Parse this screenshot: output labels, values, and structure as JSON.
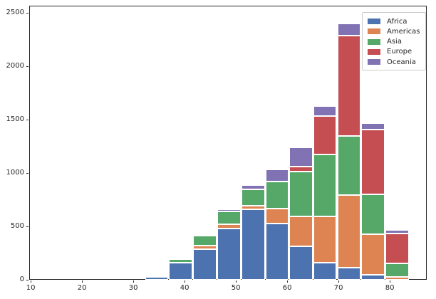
{
  "chart_data": {
    "type": "bar",
    "subtype": "stacked-histogram",
    "title": "",
    "xlabel": "",
    "ylabel": "",
    "x_ticks": [
      10,
      20,
      30,
      40,
      50,
      60,
      70,
      80
    ],
    "y_ticks": [
      0,
      500,
      1000,
      1500,
      2000,
      2500
    ],
    "xlim": [
      9.7,
      87.2
    ],
    "ylim": [
      0,
      2567
    ],
    "grid": false,
    "bin_edges": [
      32.2,
      36.9,
      41.6,
      46.3,
      51.0,
      55.7,
      60.3,
      65.0,
      69.7,
      74.4,
      79.1,
      83.8
    ],
    "series": [
      {
        "name": "Africa",
        "color": "#4C72B0",
        "values": [
          25,
          158,
          289,
          482,
          657,
          529,
          315,
          160,
          113,
          45,
          0
        ]
      },
      {
        "name": "Americas",
        "color": "#DD8452",
        "values": [
          0,
          0,
          31,
          38,
          38,
          140,
          278,
          433,
          678,
          383,
          29
        ]
      },
      {
        "name": "Asia",
        "color": "#55A868",
        "values": [
          15,
          38,
          95,
          117,
          150,
          251,
          420,
          578,
          556,
          371,
          127
        ]
      },
      {
        "name": "Europe",
        "color": "#C44E52",
        "values": [
          0,
          0,
          0,
          0,
          0,
          0,
          44,
          365,
          939,
          607,
          277
        ]
      },
      {
        "name": "Oceania",
        "color": "#8172B3",
        "values": [
          0,
          0,
          0,
          23,
          42,
          111,
          182,
          89,
          111,
          60,
          33
        ]
      }
    ],
    "stack_order_bottom_to_top": [
      "Africa",
      "Americas",
      "Asia",
      "Europe",
      "Oceania"
    ],
    "legend": {
      "position": "upper right",
      "items": [
        {
          "label": "Africa",
          "color": "#4C72B0"
        },
        {
          "label": "Americas",
          "color": "#DD8452"
        },
        {
          "label": "Asia",
          "color": "#55A868"
        },
        {
          "label": "Europe",
          "color": "#C44E52"
        },
        {
          "label": "Oceania",
          "color": "#8172B3"
        }
      ]
    },
    "style": {
      "spine_color": "#262626",
      "tick_label_color": "#262626",
      "bar_edge_color": "#ffffff",
      "background": "#ffffff",
      "legend_border_color": "#cccccc"
    }
  }
}
